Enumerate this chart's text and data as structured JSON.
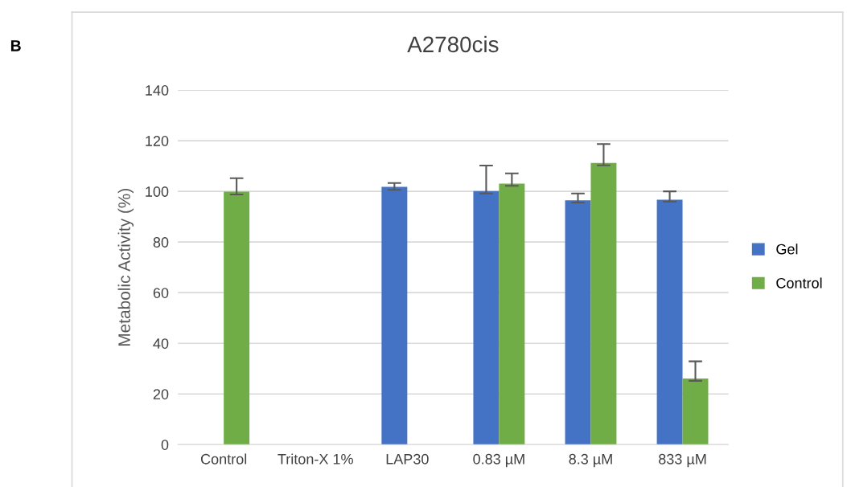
{
  "chart_data": {
    "type": "bar",
    "title": "A2780cis",
    "ylabel": "Metabolic Activity (%)",
    "categories": [
      "Control",
      "Triton-X 1%",
      "LAP30",
      "0.83 µM",
      "8.3 µM",
      "833 µM"
    ],
    "series": [
      {
        "name": "Gel",
        "color": "#4472c4",
        "values": [
          null,
          0,
          101.8,
          100.1,
          96.5,
          96.7
        ],
        "errors": [
          null,
          null,
          [
            100.6,
            103.3
          ],
          [
            99.2,
            110.2
          ],
          [
            95.6,
            99.2
          ],
          [
            95.9,
            100.0
          ]
        ]
      },
      {
        "name": "Control",
        "color": "#70ad47",
        "values": [
          99.9,
          0,
          null,
          103.1,
          111.2,
          26.1
        ],
        "errors": [
          [
            98.8,
            105.2
          ],
          null,
          null,
          [
            102.2,
            107.1
          ],
          [
            110.3,
            118.7
          ],
          [
            25.2,
            32.9
          ]
        ]
      }
    ],
    "ylim": [
      0,
      140
    ],
    "yticks": [
      0,
      20,
      40,
      60,
      80,
      100,
      120,
      140
    ],
    "grid": "y",
    "legend": "right",
    "annotations": [
      "B"
    ]
  }
}
